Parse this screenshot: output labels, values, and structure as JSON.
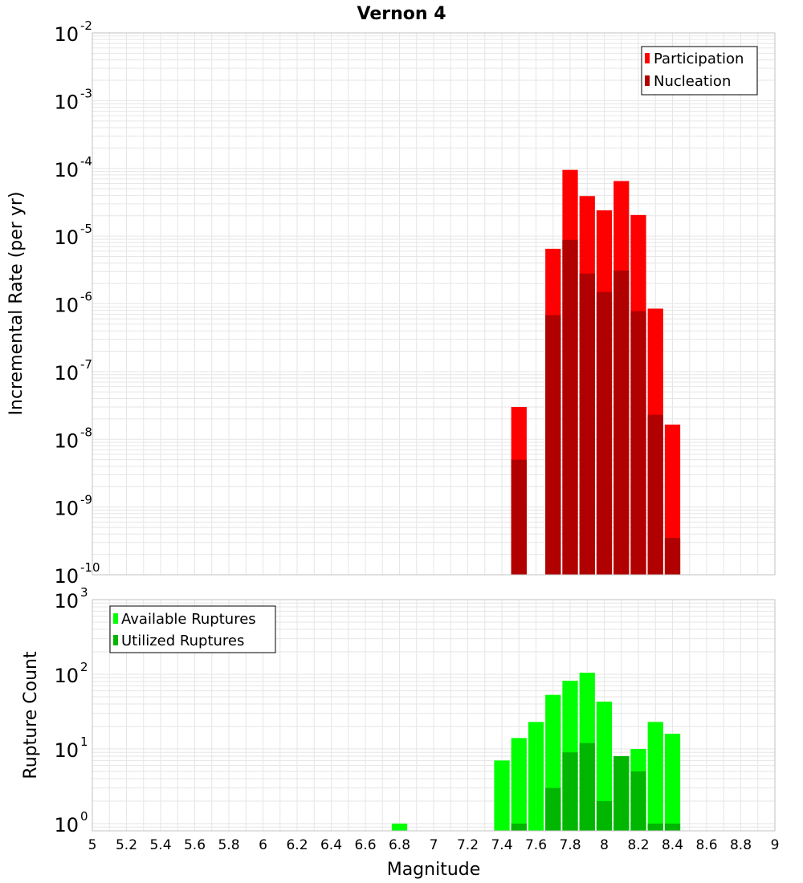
{
  "chart_data": [
    {
      "type": "bar",
      "title": "Vernon 4",
      "xlabel": "Magnitude",
      "ylabel": "Incremental Rate (per yr)",
      "yscale": "log",
      "ylim": [
        1e-10,
        0.01
      ],
      "xlim": [
        5,
        9
      ],
      "bar_width": 0.1,
      "grid": true,
      "legend_position": "top-right",
      "series": [
        {
          "name": "Participation",
          "color": "#ff0000",
          "x": [
            7.5,
            7.7,
            7.8,
            7.9,
            8.0,
            8.1,
            8.2,
            8.3,
            8.4
          ],
          "values": [
            3e-08,
            6.5e-06,
            9.5e-05,
            3.9e-05,
            2.4e-05,
            6.5e-05,
            2.05e-05,
            8.5e-07,
            1.65e-08
          ]
        },
        {
          "name": "Nucleation",
          "color": "#b10000",
          "x": [
            7.5,
            7.7,
            7.8,
            7.9,
            8.0,
            8.1,
            8.2,
            8.3,
            8.4
          ],
          "values": [
            5e-09,
            6.8e-07,
            8.8e-06,
            2.8e-06,
            1.5e-06,
            3.1e-06,
            7.8e-07,
            2.3e-08,
            3.5e-10
          ]
        }
      ]
    },
    {
      "type": "bar",
      "ylabel": "Rupture Count",
      "yscale": "log",
      "ylim": [
        0.8,
        1000
      ],
      "xlim": [
        5,
        9
      ],
      "bar_width": 0.1,
      "grid": true,
      "legend_position": "top-left",
      "series": [
        {
          "name": "Available Ruptures",
          "color": "#00ff00",
          "x": [
            6.8,
            7.4,
            7.5,
            7.6,
            7.7,
            7.8,
            7.9,
            8.0,
            8.1,
            8.2,
            8.3,
            8.4
          ],
          "values": [
            1,
            7,
            14,
            23,
            53,
            82,
            105,
            43,
            8,
            10,
            23,
            16
          ]
        },
        {
          "name": "Utilized Ruptures",
          "color": "#00b600",
          "x": [
            7.5,
            7.7,
            7.8,
            7.9,
            8.0,
            8.1,
            8.2,
            8.3,
            8.4
          ],
          "values": [
            1,
            3,
            9,
            12,
            2,
            8,
            5,
            1,
            1
          ]
        }
      ]
    }
  ],
  "x_ticks": [
    "5",
    "5.2",
    "5.4",
    "5.6",
    "5.8",
    "6",
    "6.2",
    "6.4",
    "6.6",
    "6.8",
    "7",
    "7.2",
    "7.4",
    "7.6",
    "7.8",
    "8",
    "8.2",
    "8.4",
    "8.6",
    "8.8",
    "9"
  ],
  "top_y_ticks": [
    {
      "base": "10",
      "exp": "-2"
    },
    {
      "base": "10",
      "exp": "-3"
    },
    {
      "base": "10",
      "exp": "-4"
    },
    {
      "base": "10",
      "exp": "-5"
    },
    {
      "base": "10",
      "exp": "-6"
    },
    {
      "base": "10",
      "exp": "-7"
    },
    {
      "base": "10",
      "exp": "-8"
    },
    {
      "base": "10",
      "exp": "-9"
    },
    {
      "base": "10",
      "exp": "-10"
    }
  ],
  "bottom_y_ticks": [
    {
      "base": "10",
      "exp": "3"
    },
    {
      "base": "10",
      "exp": "2"
    },
    {
      "base": "10",
      "exp": "1"
    },
    {
      "base": "10",
      "exp": "0"
    }
  ],
  "colors": {
    "grid": "#e6e6e6",
    "axis": "#c0c0c0",
    "legend_border": "#000000"
  }
}
